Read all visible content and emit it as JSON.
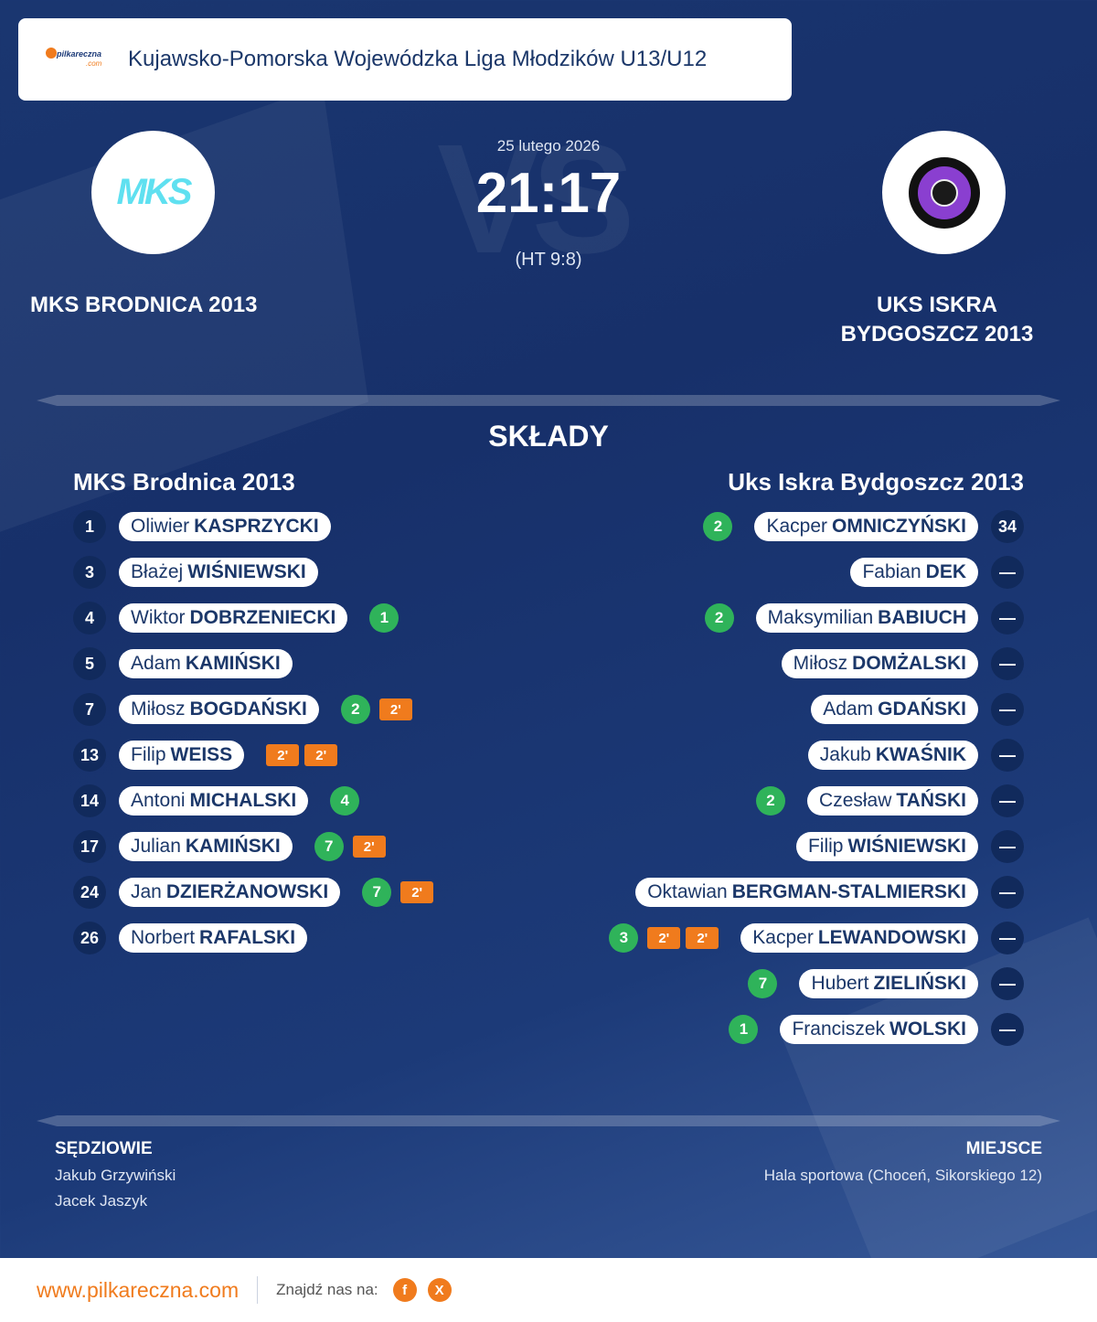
{
  "header": {
    "logo_text_1": "pilkareczna",
    "logo_text_2": ".com",
    "league": "Kujawsko-Pomorska Wojewódzka Liga Młodzików U13/U12"
  },
  "watermark": "VS",
  "match": {
    "date": "25 lutego 2026",
    "score": "21:17",
    "halftime": "(HT 9:8)"
  },
  "home": {
    "name": "MKS BRODNICA 2013",
    "logo_text": "MKS"
  },
  "away": {
    "name_line1": "UKS ISKRA",
    "name_line2": "BYDGOSZCZ 2013"
  },
  "lineups": {
    "title": "SKŁADY",
    "home_title": "MKS Brodnica 2013",
    "away_title": "Uks Iskra Bydgoszcz 2013",
    "home_players": [
      {
        "number": "1",
        "first": "Oliwier",
        "last": "KASPRZYCKI",
        "goals": null,
        "suspensions": []
      },
      {
        "number": "3",
        "first": "Błażej",
        "last": "WIŚNIEWSKI",
        "goals": null,
        "suspensions": []
      },
      {
        "number": "4",
        "first": "Wiktor",
        "last": "DOBRZENIECKI",
        "goals": "1",
        "suspensions": []
      },
      {
        "number": "5",
        "first": "Adam",
        "last": "KAMIŃSKI",
        "goals": null,
        "suspensions": []
      },
      {
        "number": "7",
        "first": "Miłosz",
        "last": "BOGDAŃSKI",
        "goals": "2",
        "suspensions": [
          "2'"
        ]
      },
      {
        "number": "13",
        "first": "Filip",
        "last": "WEISS",
        "goals": null,
        "suspensions": [
          "2'",
          "2'"
        ]
      },
      {
        "number": "14",
        "first": "Antoni",
        "last": "MICHALSKI",
        "goals": "4",
        "suspensions": []
      },
      {
        "number": "17",
        "first": "Julian",
        "last": "KAMIŃSKI",
        "goals": "7",
        "suspensions": [
          "2'"
        ]
      },
      {
        "number": "24",
        "first": "Jan",
        "last": "DZIERŻANOWSKI",
        "goals": "7",
        "suspensions": [
          "2'"
        ]
      },
      {
        "number": "26",
        "first": "Norbert",
        "last": "RAFALSKI",
        "goals": null,
        "suspensions": []
      }
    ],
    "away_players": [
      {
        "number": "34",
        "first": "Kacper",
        "last": "OMNICZYŃSKI",
        "goals": "2",
        "suspensions": []
      },
      {
        "number": "—",
        "first": "Fabian",
        "last": "DEK",
        "goals": null,
        "suspensions": []
      },
      {
        "number": "—",
        "first": "Maksymilian",
        "last": "BABIUCH",
        "goals": "2",
        "suspensions": []
      },
      {
        "number": "—",
        "first": "Miłosz",
        "last": "DOMŻALSKI",
        "goals": null,
        "suspensions": []
      },
      {
        "number": "—",
        "first": "Adam",
        "last": "GDAŃSKI",
        "goals": null,
        "suspensions": []
      },
      {
        "number": "—",
        "first": "Jakub",
        "last": "KWAŚNIK",
        "goals": null,
        "suspensions": []
      },
      {
        "number": "—",
        "first": "Czesław",
        "last": "TAŃSKI",
        "goals": "2",
        "suspensions": []
      },
      {
        "number": "—",
        "first": "Filip",
        "last": "WIŚNIEWSKI",
        "goals": null,
        "suspensions": []
      },
      {
        "number": "—",
        "first": "Oktawian",
        "last": "BERGMAN-STALMIERSKI",
        "goals": null,
        "suspensions": []
      },
      {
        "number": "—",
        "first": "Kacper",
        "last": "LEWANDOWSKI",
        "goals": "3",
        "suspensions": [
          "2'",
          "2'"
        ]
      },
      {
        "number": "—",
        "first": "Hubert",
        "last": "ZIELIŃSKI",
        "goals": "7",
        "suspensions": []
      },
      {
        "number": "—",
        "first": "Franciszek",
        "last": "WOLSKI",
        "goals": "1",
        "suspensions": []
      }
    ]
  },
  "officials": {
    "title": "SĘDZIOWIE",
    "referees": [
      "Jakub Grzywiński",
      "Jacek Jaszyk"
    ]
  },
  "venue": {
    "title": "MIEJSCE",
    "value": "Hala sportowa (Choceń, Sikorskiego 12)"
  },
  "footer": {
    "site": "www.pilkareczna.com",
    "find_us": "Znajdź nas na:",
    "social": [
      "f",
      "X"
    ]
  },
  "colors": {
    "goal": "#2fb35a",
    "suspension": "#f07b1d",
    "brand": "#f07b1d"
  }
}
